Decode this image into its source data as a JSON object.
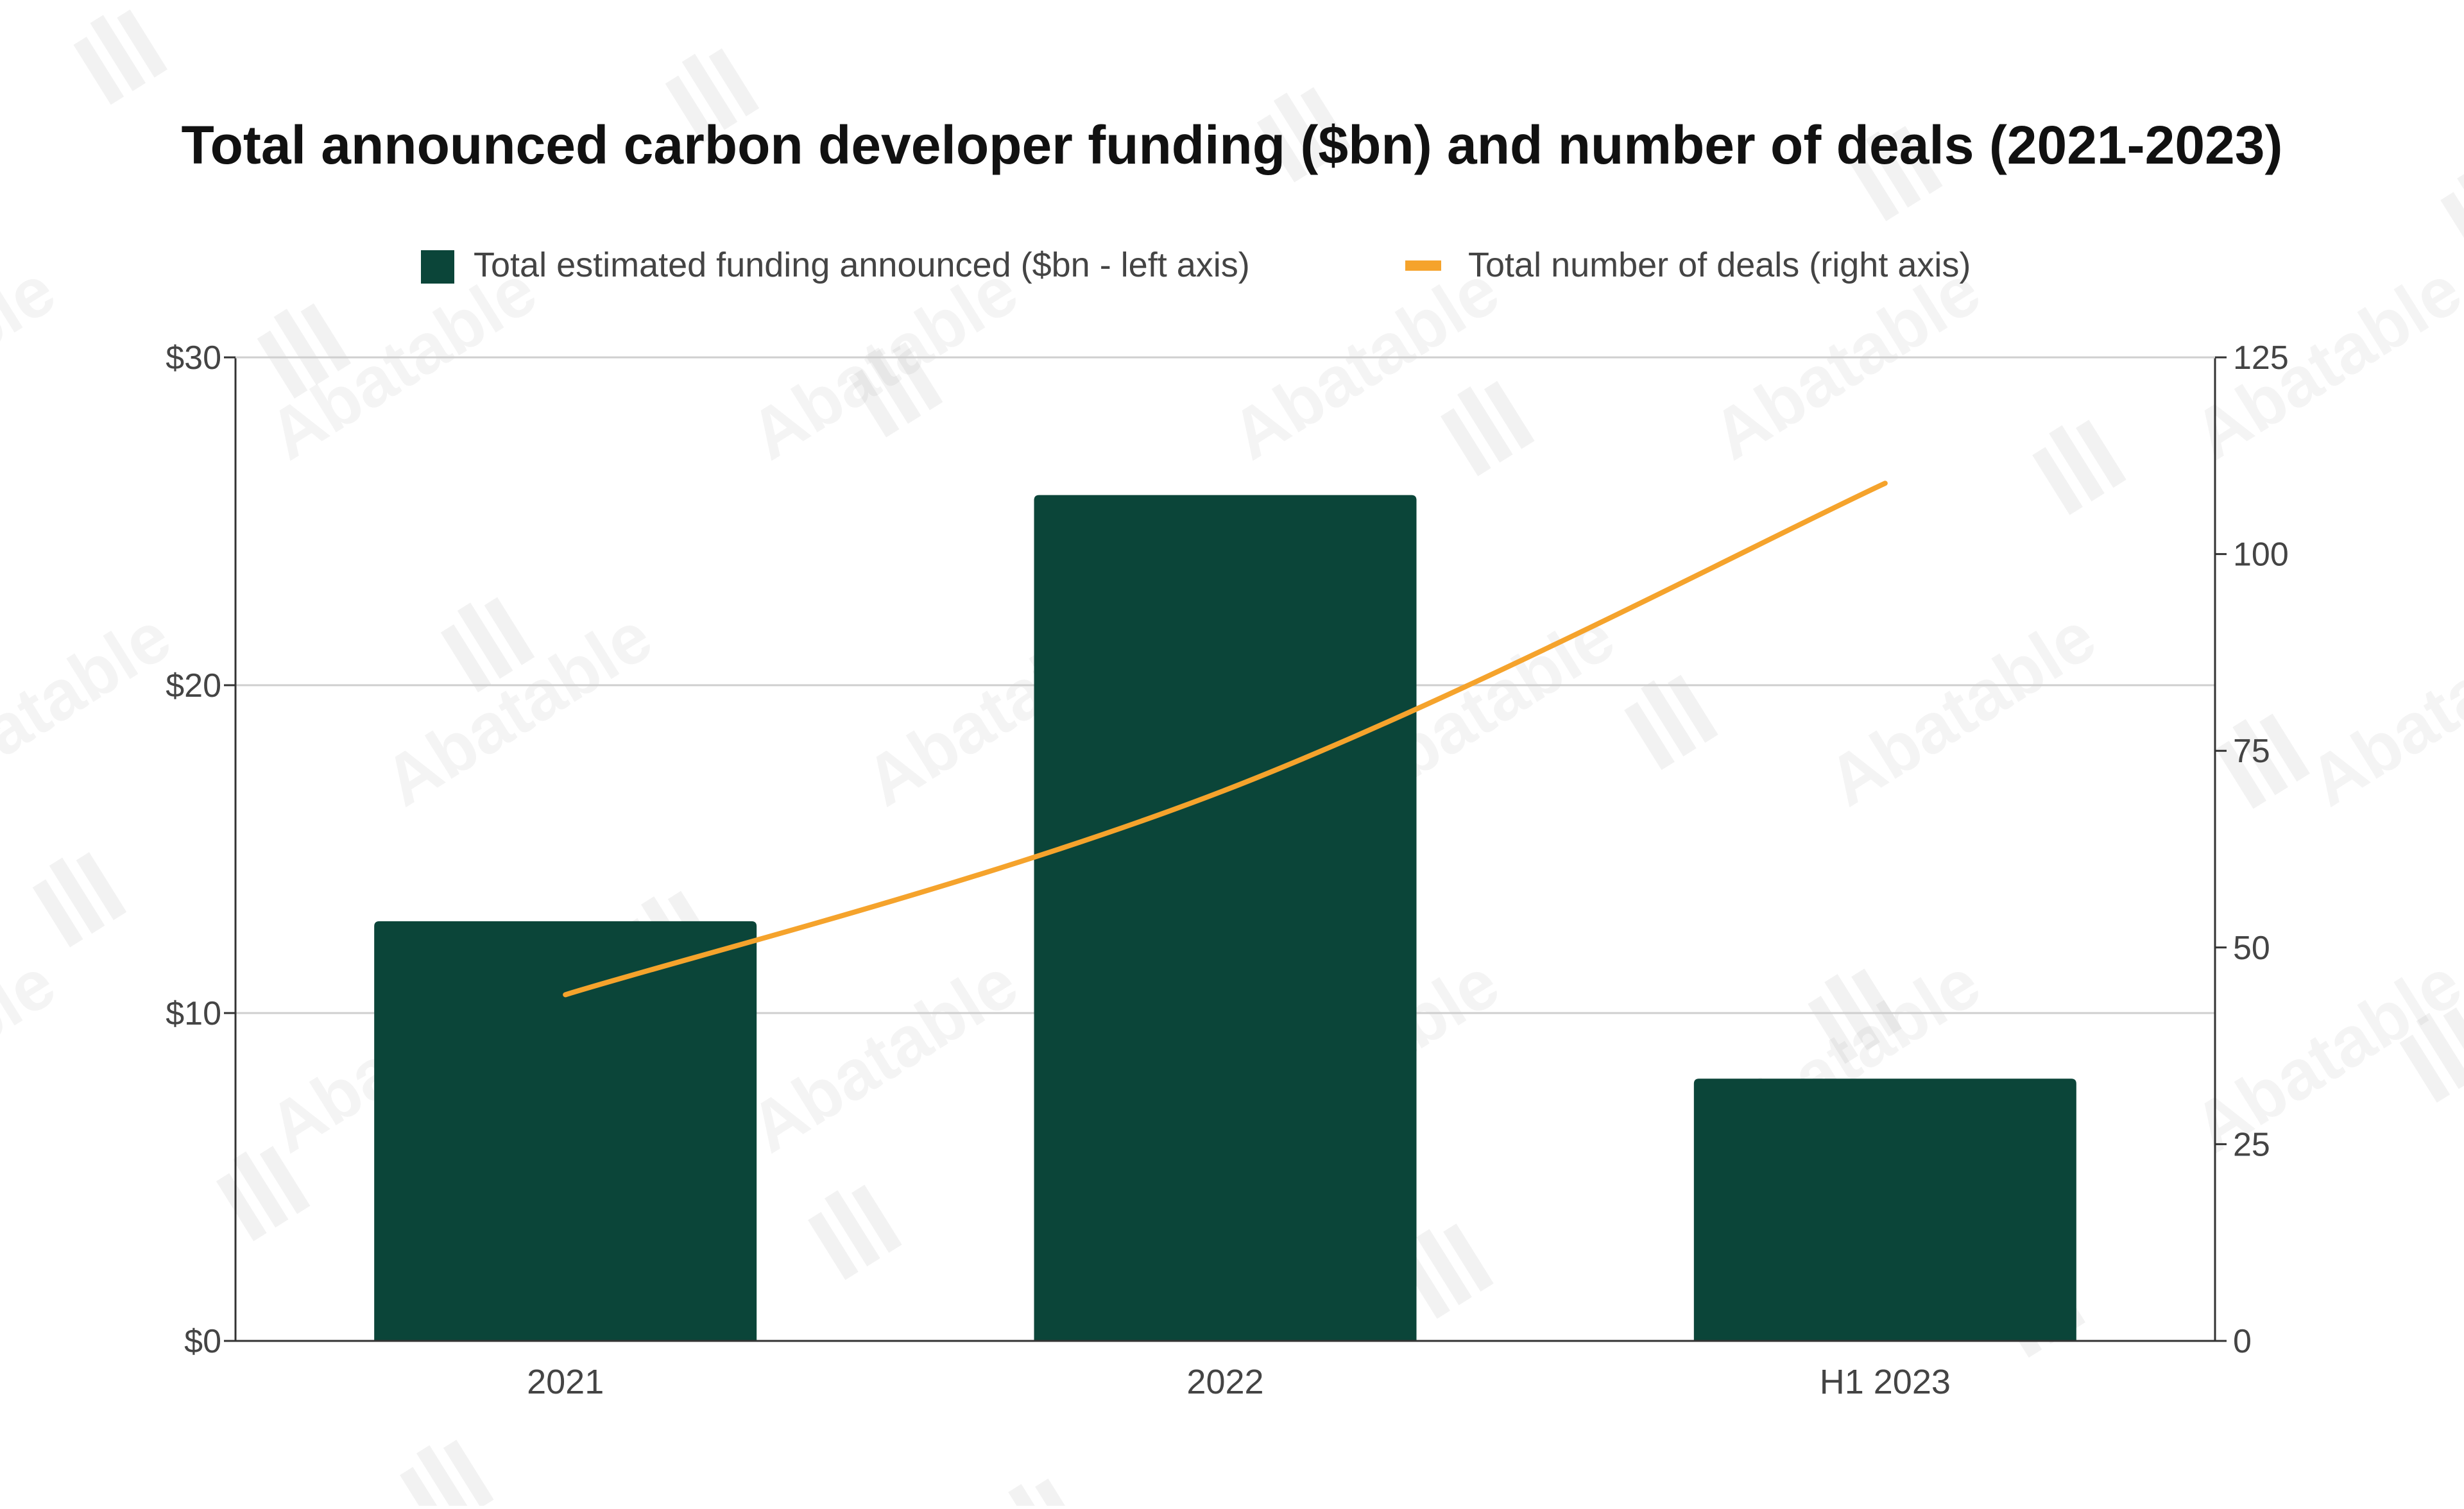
{
  "chart_data": {
    "type": "bar",
    "title": "Total announced carbon developer funding ($bn) and number of deals (2021-2023)",
    "categories": [
      "2021",
      "2022",
      "H1 2023"
    ],
    "series": [
      {
        "name": "Total estimated funding announced ($bn - left axis)",
        "type": "bar",
        "axis": "left",
        "color": "#0b4539",
        "values": [
          12.8,
          25.8,
          8.0
        ]
      },
      {
        "name": "Total number of deals (right axis)",
        "type": "line",
        "axis": "right",
        "color": "#f5a32c",
        "values": [
          44,
          70,
          109
        ]
      }
    ],
    "left_axis": {
      "ylim": [
        0,
        30
      ],
      "ticks": [
        0,
        10,
        20,
        30
      ],
      "tick_labels": [
        "$0",
        "$10",
        "$20",
        "$30"
      ]
    },
    "right_axis": {
      "ylim": [
        0,
        125
      ],
      "ticks": [
        0,
        25,
        50,
        75,
        100,
        125
      ],
      "tick_labels": [
        "0",
        "25",
        "50",
        "75",
        "100",
        "125"
      ]
    },
    "legend_position": "top",
    "grid": true,
    "watermark": "Abatable"
  }
}
